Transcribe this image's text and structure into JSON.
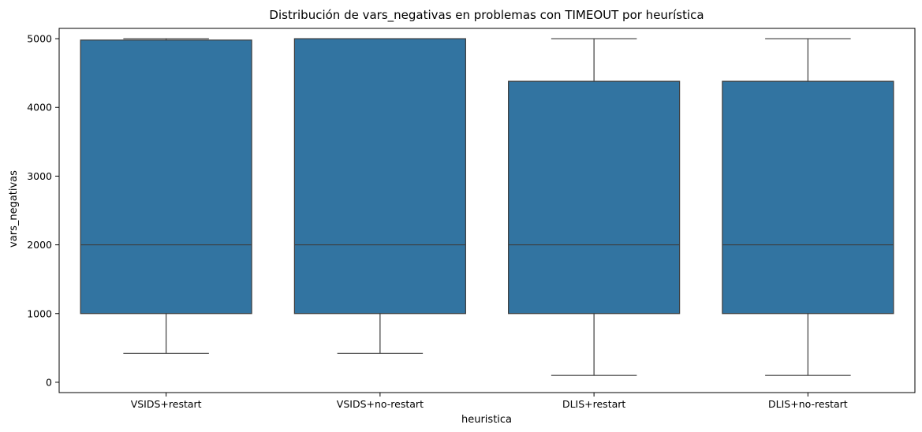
{
  "chart_data": {
    "type": "box",
    "title": "Distribución de vars_negativas en problemas con TIMEOUT por heurística",
    "xlabel": "heuristica",
    "ylabel": "vars_negativas",
    "ylim": [
      -150,
      5150
    ],
    "yticks": [
      0,
      1000,
      2000,
      3000,
      4000,
      5000
    ],
    "grid": false,
    "legend": "none",
    "box_color": "#3274a1",
    "line_color": "#3d3d3d",
    "categories": [
      "VSIDS+restart",
      "VSIDS+no-restart",
      "DLIS+restart",
      "DLIS+no-restart"
    ],
    "boxes": [
      {
        "category": "VSIDS+restart",
        "whisker_low": 420,
        "q1": 1000,
        "median": 2000,
        "q3": 4980,
        "whisker_high": 5000
      },
      {
        "category": "VSIDS+no-restart",
        "whisker_low": 420,
        "q1": 1000,
        "median": 2000,
        "q3": 5000,
        "whisker_high": 5000
      },
      {
        "category": "DLIS+restart",
        "whisker_low": 100,
        "q1": 1000,
        "median": 2000,
        "q3": 4380,
        "whisker_high": 5000
      },
      {
        "category": "DLIS+no-restart",
        "whisker_low": 100,
        "q1": 1000,
        "median": 2000,
        "q3": 4380,
        "whisker_high": 5000
      }
    ]
  }
}
